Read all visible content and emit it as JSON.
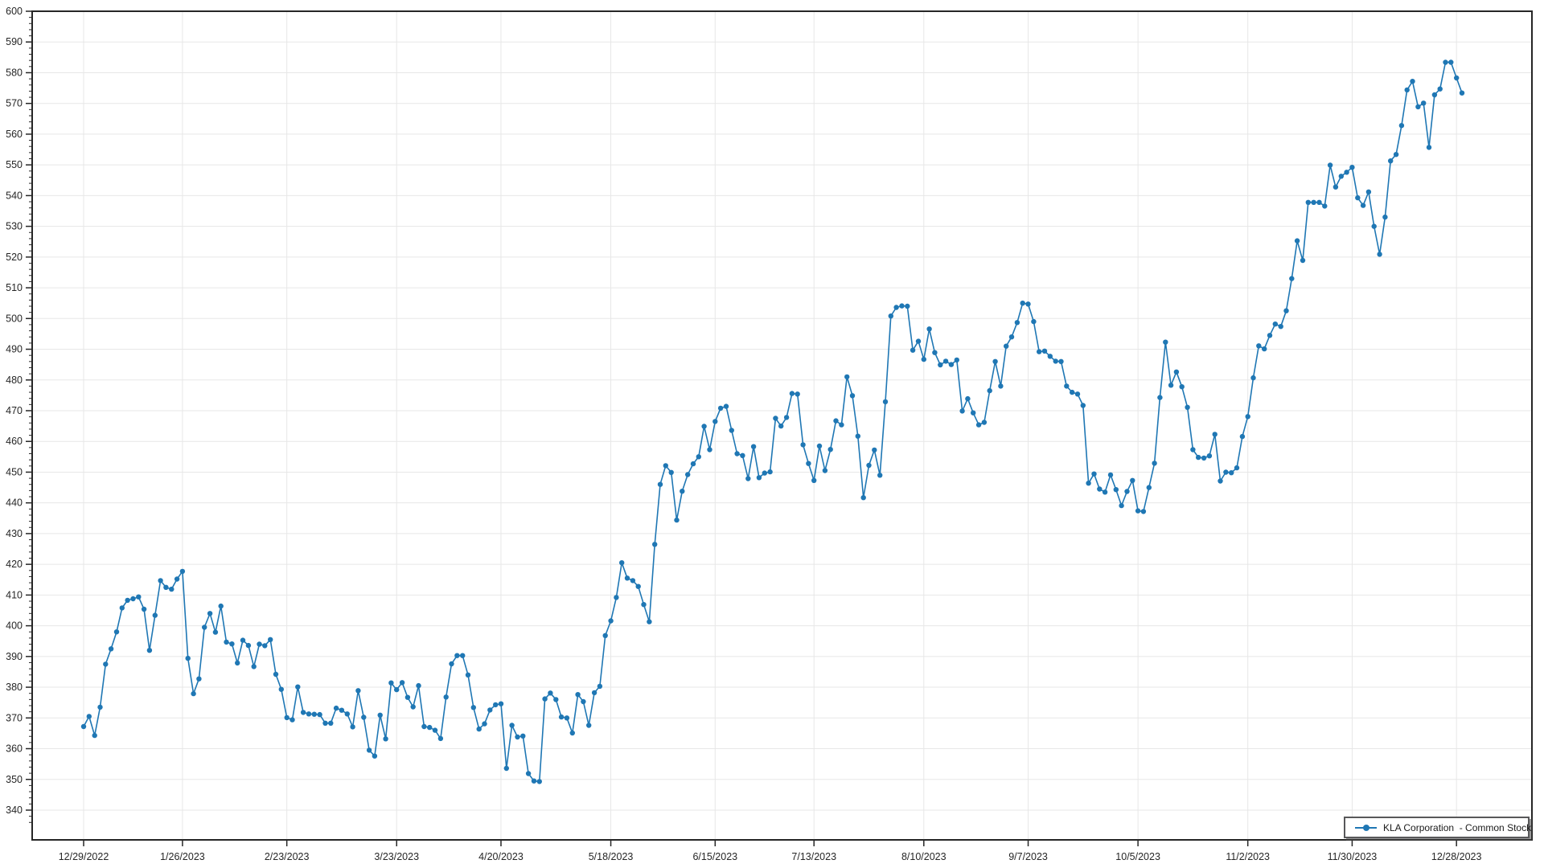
{
  "legend": {
    "label": "KLA Corporation  - Common Stock",
    "position": "bottom-right"
  },
  "colors": {
    "series": "#1f77b4",
    "grid": "#e7e7e7",
    "axis_border": "#262626",
    "tick": "#262626",
    "text": "#262626",
    "background": "#ffffff",
    "legend_border": "#58585a"
  },
  "chart_data": {
    "type": "line",
    "title": "",
    "xlabel": "",
    "ylabel": "",
    "series_name": "KLA Corporation  - Common Stock",
    "legend_position": "bottom-right",
    "grid": true,
    "marker": "circle",
    "ylim": [
      330,
      600
    ],
    "y_tick_min": 340,
    "y_tick_max": 600,
    "y_tick_step": 10,
    "y_minor_step": 2,
    "x_tick_labels": [
      "12/29/2022",
      "1/26/2023",
      "2/23/2023",
      "3/23/2023",
      "4/20/2023",
      "5/18/2023",
      "6/15/2023",
      "7/13/2023",
      "8/10/2023",
      "9/7/2023",
      "10/5/2023",
      "11/2/2023",
      "11/30/2023",
      "12/28/2023"
    ],
    "x": [
      "12/29/2022",
      "12/30/2022",
      "1/3/2023",
      "1/4/2023",
      "1/5/2023",
      "1/6/2023",
      "1/9/2023",
      "1/10/2023",
      "1/11/2023",
      "1/12/2023",
      "1/13/2023",
      "1/17/2023",
      "1/18/2023",
      "1/19/2023",
      "1/20/2023",
      "1/23/2023",
      "1/24/2023",
      "1/25/2023",
      "1/26/2023",
      "1/27/2023",
      "1/30/2023",
      "1/31/2023",
      "2/1/2023",
      "2/2/2023",
      "2/3/2023",
      "2/6/2023",
      "2/7/2023",
      "2/8/2023",
      "2/9/2023",
      "2/10/2023",
      "2/13/2023",
      "2/14/2023",
      "2/15/2023",
      "2/16/2023",
      "2/17/2023",
      "2/21/2023",
      "2/22/2023",
      "2/23/2023",
      "2/24/2023",
      "2/27/2023",
      "2/28/2023",
      "3/1/2023",
      "3/2/2023",
      "3/3/2023",
      "3/6/2023",
      "3/7/2023",
      "3/8/2023",
      "3/9/2023",
      "3/10/2023",
      "3/13/2023",
      "3/14/2023",
      "3/15/2023",
      "3/16/2023",
      "3/17/2023",
      "3/20/2023",
      "3/21/2023",
      "3/22/2023",
      "3/23/2023",
      "3/24/2023",
      "3/27/2023",
      "3/28/2023",
      "3/29/2023",
      "3/30/2023",
      "3/31/2023",
      "4/3/2023",
      "4/4/2023",
      "4/5/2023",
      "4/6/2023",
      "4/10/2023",
      "4/11/2023",
      "4/12/2023",
      "4/13/2023",
      "4/14/2023",
      "4/17/2023",
      "4/18/2023",
      "4/19/2023",
      "4/20/2023",
      "4/21/2023",
      "4/24/2023",
      "4/25/2023",
      "4/26/2023",
      "4/27/2023",
      "4/28/2023",
      "5/1/2023",
      "5/2/2023",
      "5/3/2023",
      "5/4/2023",
      "5/5/2023",
      "5/8/2023",
      "5/9/2023",
      "5/10/2023",
      "5/11/2023",
      "5/12/2023",
      "5/15/2023",
      "5/16/2023",
      "5/17/2023",
      "5/18/2023",
      "5/19/2023",
      "5/22/2023",
      "5/23/2023",
      "5/24/2023",
      "5/25/2023",
      "5/26/2023",
      "5/30/2023",
      "5/31/2023",
      "6/1/2023",
      "6/2/2023",
      "6/5/2023",
      "6/6/2023",
      "6/7/2023",
      "6/8/2023",
      "6/9/2023",
      "6/12/2023",
      "6/13/2023",
      "6/14/2023",
      "6/15/2023",
      "6/16/2023",
      "6/20/2023",
      "6/21/2023",
      "6/22/2023",
      "6/23/2023",
      "6/26/2023",
      "6/27/2023",
      "6/28/2023",
      "6/29/2023",
      "6/30/2023",
      "7/3/2023",
      "7/5/2023",
      "7/6/2023",
      "7/7/2023",
      "7/10/2023",
      "7/11/2023",
      "7/12/2023",
      "7/13/2023",
      "7/14/2023",
      "7/17/2023",
      "7/18/2023",
      "7/19/2023",
      "7/20/2023",
      "7/21/2023",
      "7/24/2023",
      "7/25/2023",
      "7/26/2023",
      "7/27/2023",
      "7/28/2023",
      "7/31/2023",
      "8/1/2023",
      "8/2/2023",
      "8/3/2023",
      "8/4/2023",
      "8/7/2023",
      "8/8/2023",
      "8/9/2023",
      "8/10/2023",
      "8/11/2023",
      "8/14/2023",
      "8/15/2023",
      "8/16/2023",
      "8/17/2023",
      "8/18/2023",
      "8/21/2023",
      "8/22/2023",
      "8/23/2023",
      "8/24/2023",
      "8/25/2023",
      "8/28/2023",
      "8/29/2023",
      "8/30/2023",
      "8/31/2023",
      "9/1/2023",
      "9/5/2023",
      "9/6/2023",
      "9/7/2023",
      "9/8/2023",
      "9/11/2023",
      "9/12/2023",
      "9/13/2023",
      "9/14/2023",
      "9/15/2023",
      "9/18/2023",
      "9/19/2023",
      "9/20/2023",
      "9/21/2023",
      "9/22/2023",
      "9/25/2023",
      "9/26/2023",
      "9/27/2023",
      "9/28/2023",
      "9/29/2023",
      "10/2/2023",
      "10/3/2023",
      "10/4/2023",
      "10/5/2023",
      "10/6/2023",
      "10/9/2023",
      "10/10/2023",
      "10/11/2023",
      "10/12/2023",
      "10/13/2023",
      "10/16/2023",
      "10/17/2023",
      "10/18/2023",
      "10/19/2023",
      "10/20/2023",
      "10/23/2023",
      "10/24/2023",
      "10/25/2023",
      "10/26/2023",
      "10/27/2023",
      "10/30/2023",
      "10/31/2023",
      "11/1/2023",
      "11/2/2023",
      "11/3/2023",
      "11/6/2023",
      "11/7/2023",
      "11/8/2023",
      "11/9/2023",
      "11/10/2023",
      "11/13/2023",
      "11/14/2023",
      "11/15/2023",
      "11/16/2023",
      "11/17/2023",
      "11/20/2023",
      "11/21/2023",
      "11/22/2023",
      "11/24/2023",
      "11/27/2023",
      "11/28/2023",
      "11/29/2023",
      "11/30/2023",
      "12/1/2023",
      "12/4/2023",
      "12/5/2023",
      "12/6/2023",
      "12/7/2023",
      "12/8/2023",
      "12/11/2023",
      "12/12/2023",
      "12/13/2023",
      "12/14/2023",
      "12/15/2023",
      "12/18/2023",
      "12/19/2023",
      "12/20/2023",
      "12/21/2023",
      "12/22/2023",
      "12/26/2023",
      "12/27/2023",
      "12/28/2023",
      "12/29/2023"
    ],
    "values": [
      367.2,
      370.5,
      364.3,
      373.5,
      387.5,
      392.5,
      398.0,
      405.8,
      408.3,
      408.8,
      409.4,
      405.4,
      392.0,
      403.4,
      414.7,
      412.5,
      411.9,
      415.2,
      417.7,
      389.4,
      377.9,
      382.7,
      399.5,
      404.0,
      397.9,
      406.4,
      394.7,
      394.1,
      387.9,
      395.3,
      393.6,
      386.7,
      394.0,
      393.5,
      395.5,
      384.2,
      379.3,
      370.1,
      369.4,
      380.1,
      371.8,
      371.3,
      371.2,
      371.1,
      368.3,
      368.3,
      373.2,
      372.5,
      371.3,
      367.1,
      378.9,
      370.2,
      359.5,
      357.6,
      370.9,
      363.2,
      381.4,
      379.2,
      381.5,
      376.7,
      373.6,
      380.5,
      367.2,
      366.9,
      366.0,
      363.3,
      376.8,
      387.6,
      390.3,
      390.3,
      384.0,
      373.4,
      366.4,
      368.1,
      372.6,
      374.3,
      374.6,
      353.6,
      367.6,
      363.8,
      364.1,
      351.9,
      349.5,
      349.3,
      376.2,
      378.1,
      376.0,
      370.3,
      370.0,
      365.1,
      377.6,
      375.3,
      367.6,
      378.2,
      380.3,
      396.8,
      401.6,
      409.2,
      420.5,
      415.5,
      414.7,
      412.8,
      406.9,
      401.3,
      426.5,
      446.0,
      452.1,
      449.9,
      434.4,
      443.8,
      449.2,
      452.7,
      455.0,
      464.9,
      457.3,
      466.5,
      470.8,
      471.4,
      463.6,
      456.0,
      455.4,
      447.9,
      458.3,
      448.2,
      449.7,
      450.1,
      467.5,
      465.0,
      467.8,
      475.6,
      475.4,
      458.9,
      452.8,
      447.3,
      458.5,
      450.5,
      457.4,
      466.7,
      465.4,
      481.0,
      474.9,
      461.7,
      441.7,
      452.2,
      457.2,
      449.0,
      472.9,
      500.8,
      503.6,
      504.1,
      504.0,
      489.7,
      492.6,
      486.7,
      496.6,
      488.9,
      484.9,
      486.1,
      485.0,
      486.5,
      469.9,
      473.9,
      469.3,
      465.4,
      466.2,
      476.5,
      486.0,
      478.0,
      491.0,
      494.0,
      498.7,
      505.0,
      504.7,
      499.0,
      489.2,
      489.4,
      487.7,
      486.1,
      486.0,
      478.0,
      476.0,
      475.4,
      471.7,
      446.4,
      449.4,
      444.5,
      443.5,
      449.1,
      444.3,
      439.1,
      443.7,
      447.3,
      437.4,
      437.2,
      445.0,
      452.9,
      474.3,
      492.3,
      478.3,
      482.6,
      477.8,
      471.1,
      457.3,
      454.8,
      454.6,
      455.3,
      462.3,
      447.1,
      450.0,
      449.8,
      451.4,
      461.6,
      468.1,
      480.7,
      491.1,
      490.1,
      494.5,
      498.2,
      497.4,
      502.5,
      513.0,
      525.3,
      518.9,
      537.8,
      537.8,
      537.8,
      536.6,
      549.9,
      542.8,
      546.3,
      547.6,
      549.2,
      539.3,
      536.8,
      541.2,
      530.0,
      520.9,
      533.0,
      551.3,
      553.4,
      562.8,
      574.4,
      577.2,
      568.9,
      570.1,
      555.7,
      572.8,
      574.7,
      583.4,
      583.4,
      578.3,
      573.4
    ]
  }
}
